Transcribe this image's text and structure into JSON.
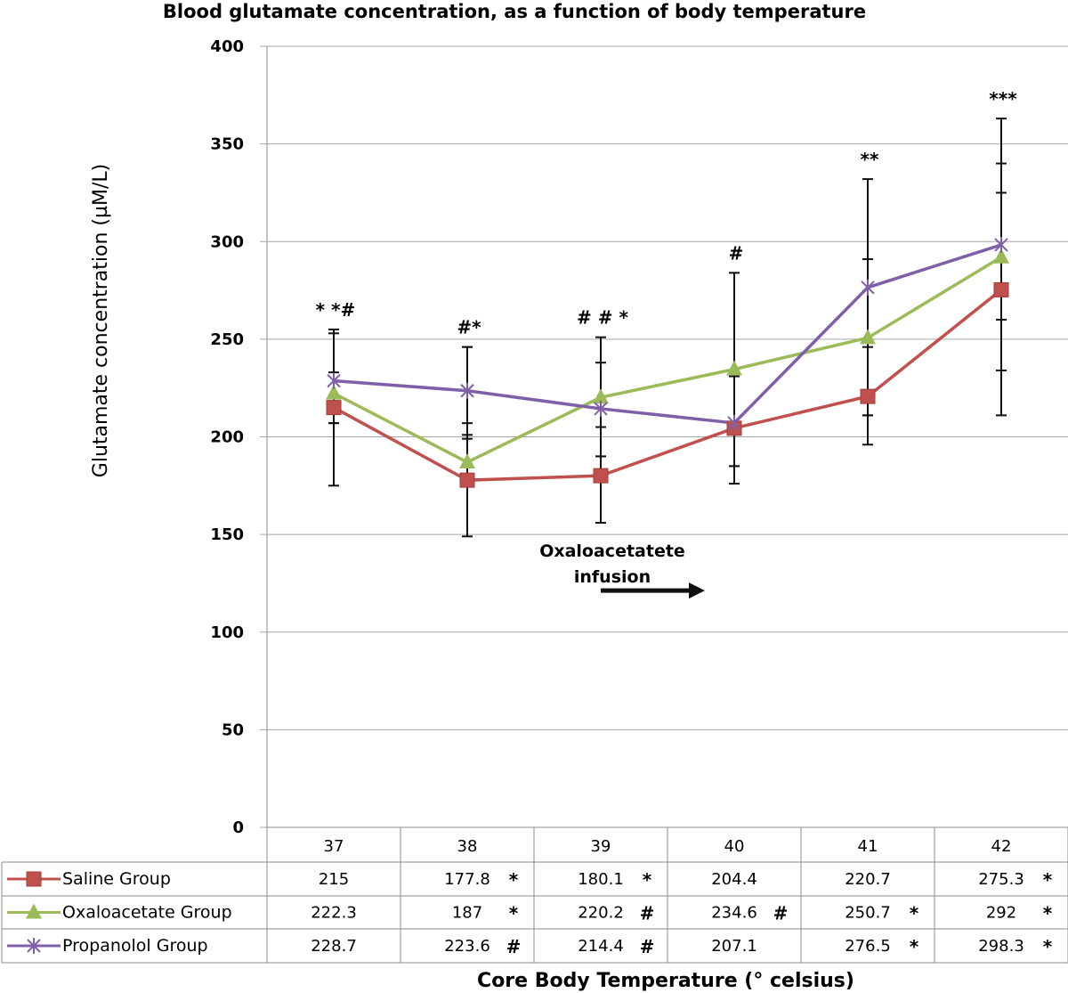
{
  "chart_data": {
    "type": "line",
    "title": "Blood glutamate concentration, as a function of body temperature",
    "xlabel": "Core Body Temperature (° celsius)",
    "ylabel": "Glutamate concentration (µM/L)",
    "ylim": [
      0,
      400
    ],
    "yticks": [
      0,
      50,
      100,
      150,
      200,
      250,
      300,
      350,
      400
    ],
    "grid": true,
    "categories": [
      "37",
      "38",
      "39",
      "40",
      "41",
      "42"
    ],
    "series": [
      {
        "name": "Saline Group",
        "color": "#c0504d",
        "marker": "square",
        "values": [
          215,
          177.8,
          180.1,
          204.4,
          220.7,
          275.3
        ],
        "error_low": [
          175,
          149,
          156,
          176,
          196,
          234
        ],
        "error_high": [
          255,
          207,
          205,
          232,
          246,
          325
        ],
        "table_labels": [
          "215",
          "177.8",
          "180.1",
          "204.4",
          "220.7",
          "275.3"
        ],
        "table_marks": [
          "",
          "*",
          "*",
          "",
          "",
          "*"
        ]
      },
      {
        "name": "Oxaloacetate Group",
        "color": "#9bbb59",
        "marker": "triangle",
        "values": [
          222.3,
          187,
          220.2,
          234.6,
          250.7,
          292
        ],
        "error_low": [
          207,
          201,
          190,
          185,
          211,
          211
        ],
        "error_high": [
          233,
          246,
          238,
          284,
          291,
          340
        ],
        "table_labels": [
          "222.3",
          "187",
          "220.2",
          "234.6",
          "250.7",
          "292"
        ],
        "table_marks": [
          "",
          "*",
          "#",
          "#",
          "*",
          "*"
        ]
      },
      {
        "name": "Propanolol Group",
        "color": "#7f5fa8",
        "marker": "x",
        "values": [
          228.7,
          223.6,
          214.4,
          207.1,
          276.5,
          298.3
        ],
        "error_low": [
          207,
          199,
          190,
          185,
          211,
          260
        ],
        "error_high": [
          253,
          246,
          251,
          231,
          332,
          363
        ],
        "table_labels": [
          "228.7",
          "223.6",
          "214.4",
          "207.1",
          "276.5",
          "298.3"
        ],
        "table_marks": [
          "",
          "#",
          "#",
          "",
          "*",
          "*"
        ]
      }
    ],
    "significance_labels": [
      "* *#",
      "#*",
      "# # *",
      "#",
      "**",
      "***"
    ],
    "annotation": {
      "line1": "Oxaloacetatete",
      "line2": "infusion",
      "arrow_from": 39,
      "arrow_to": 39.78,
      "y": 150
    }
  }
}
